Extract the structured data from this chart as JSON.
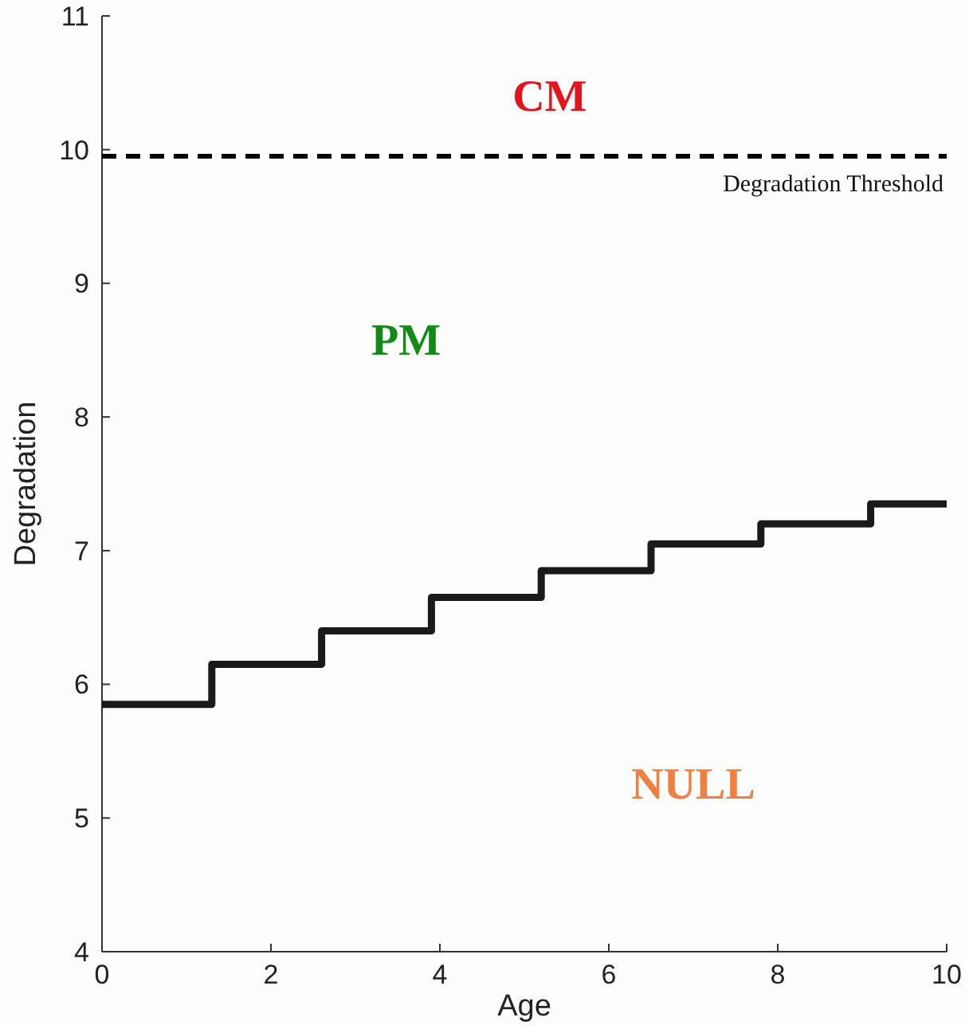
{
  "chart_data": {
    "type": "step",
    "xlabel": "Age",
    "ylabel": "Degradation",
    "xlim": [
      0,
      10
    ],
    "xticks": [
      0,
      2,
      4,
      6,
      8,
      10
    ],
    "ylim": [
      4,
      11
    ],
    "yticks": [
      4,
      5,
      6,
      7,
      8,
      9,
      10,
      11
    ],
    "series": [
      {
        "color": "#1a1a1a",
        "x": [
          0,
          1.3,
          2.6,
          3.9,
          5.2,
          6.5,
          7.8,
          9.1,
          10
        ],
        "values": [
          5.85,
          6.15,
          6.4,
          6.65,
          6.85,
          7.05,
          7.2,
          7.35,
          7.35
        ]
      }
    ],
    "ref_lines": [
      {
        "axis": "y",
        "value": 9.95,
        "label": "Degradation Threshold",
        "color": "#000000",
        "line_style": "dashed"
      }
    ],
    "annotations": [
      "CM",
      "PM",
      "NULL"
    ],
    "grid": false
  }
}
